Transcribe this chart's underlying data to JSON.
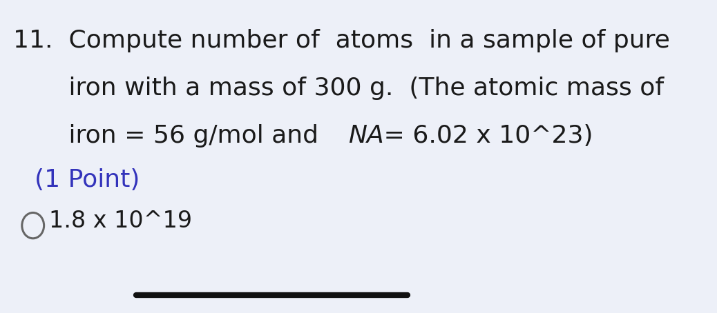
{
  "background_color": "#edf0f8",
  "line1": "11.  Compute number of  atoms  in a sample of pure",
  "line2": "       iron with a mass of 300 g.  (The atomic mass of",
  "line3_part1": "       iron = 56 g/mol and ",
  "line3_na": "NA",
  "line3_part2": " = 6.02 x 10^23)",
  "point_text": "(1 Point)",
  "answer_text": "1.8 x 10^19",
  "text_color": "#1a1a1a",
  "point_color": "#3333bb",
  "circle_color": "#666666",
  "line_color": "#111111",
  "main_fontsize": 26,
  "point_fontsize": 26,
  "answer_fontsize": 24,
  "fig_width": 10.38,
  "fig_height": 4.54,
  "dpi": 100
}
